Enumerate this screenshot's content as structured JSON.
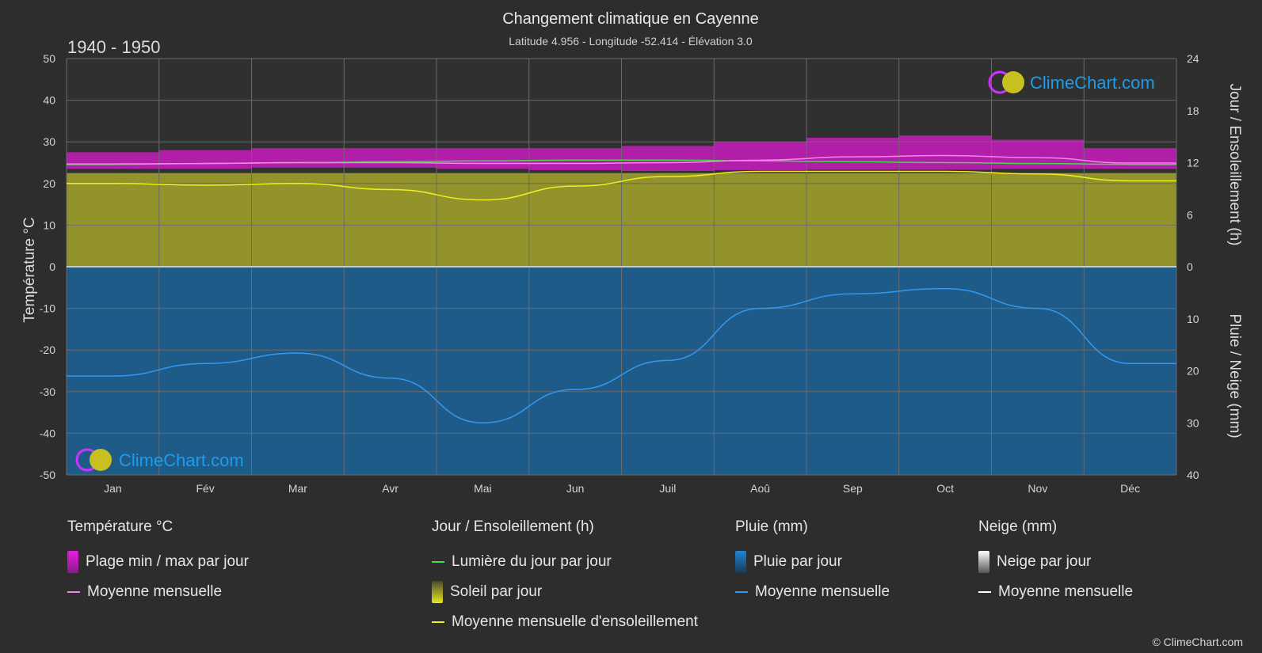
{
  "title": "Changement climatique en Cayenne",
  "subtitle": "Latitude 4.956 - Longitude -52.414 - Élévation 3.0",
  "period": "1940 - 1950",
  "brand": "ClimeChart.com",
  "copyright": "© ClimeChart.com",
  "colors": {
    "temp_band": "#d21bc8",
    "temp_line": "#ff7df2",
    "daylight_line": "#44dd44",
    "sun_fill": "#a5a52a",
    "sun_line": "#f0f020",
    "rain_fill": "#1a6aa5",
    "rain_line": "#3399ee",
    "snow_line": "#ffffff"
  },
  "chart_data": {
    "type": "area",
    "months": [
      "Jan",
      "Fév",
      "Mar",
      "Avr",
      "Mai",
      "Jun",
      "Juil",
      "Aoû",
      "Sep",
      "Oct",
      "Nov",
      "Déc"
    ],
    "left_axis": {
      "label": "Température °C",
      "ylim": [
        -50,
        50
      ],
      "ticks": [
        50,
        40,
        30,
        20,
        10,
        0,
        -10,
        -20,
        -30,
        -40,
        -50
      ]
    },
    "right_axis_top": {
      "label": "Jour / Ensoleillement (h)",
      "ylim": [
        0,
        24
      ],
      "ticks": [
        24,
        18,
        12,
        6,
        0
      ]
    },
    "right_axis_bottom": {
      "label": "Pluie / Neige (mm)",
      "ylim": [
        0,
        40
      ],
      "ticks": [
        0,
        10,
        20,
        30,
        40
      ]
    },
    "series": [
      {
        "name": "Plage min / max par jour",
        "unit": "°C",
        "min": [
          23.5,
          23.5,
          23.8,
          23.8,
          23.5,
          23.2,
          23.0,
          23.2,
          23.3,
          23.3,
          23.5,
          23.5
        ],
        "max": [
          27.5,
          28.0,
          28.5,
          28.5,
          28.5,
          28.5,
          29.0,
          30.0,
          31.0,
          31.5,
          30.5,
          28.5
        ]
      },
      {
        "name": "Moyenne mensuelle",
        "unit": "°C",
        "values": [
          24.7,
          24.8,
          25.0,
          25.0,
          24.8,
          24.8,
          25.0,
          25.6,
          26.4,
          26.7,
          26.2,
          24.9
        ]
      },
      {
        "name": "Lumière du jour par jour",
        "unit": "h",
        "values": [
          11.8,
          11.9,
          12.0,
          12.1,
          12.2,
          12.3,
          12.3,
          12.2,
          12.1,
          12.0,
          11.9,
          11.8
        ]
      },
      {
        "name": "Soleil par jour",
        "unit": "h",
        "values": [
          10.8,
          10.8,
          10.8,
          10.8,
          10.8,
          10.8,
          10.8,
          10.8,
          10.8,
          10.8,
          10.8,
          10.8
        ]
      },
      {
        "name": "Moyenne mensuelle d'ensoleillement",
        "unit": "h",
        "values": [
          9.6,
          9.4,
          9.6,
          8.9,
          7.7,
          9.3,
          10.4,
          11.0,
          11.0,
          11.0,
          10.7,
          9.9
        ]
      },
      {
        "name": "Pluie par jour",
        "unit": "mm",
        "values": [
          21.0,
          18.6,
          16.6,
          21.4,
          30.0,
          23.6,
          18.0,
          8.0,
          5.2,
          4.2,
          8.0,
          18.6
        ]
      },
      {
        "name": "Moyenne mensuelle",
        "unit": "mm",
        "values": [
          21.0,
          18.6,
          16.6,
          21.4,
          30.0,
          23.6,
          18.0,
          8.0,
          5.2,
          4.2,
          8.0,
          18.6
        ]
      },
      {
        "name": "Neige par jour",
        "unit": "mm",
        "values": [
          0,
          0,
          0,
          0,
          0,
          0,
          0,
          0,
          0,
          0,
          0,
          0
        ]
      }
    ]
  },
  "legend": {
    "temperature": {
      "title": "Température °C",
      "band": "Plage min / max par jour",
      "mean": "Moyenne mensuelle"
    },
    "sunshine": {
      "title": "Jour / Ensoleillement (h)",
      "daylight": "Lumière du jour par jour",
      "sun": "Soleil par jour",
      "sun_mean": "Moyenne mensuelle d'ensoleillement"
    },
    "rain": {
      "title": "Pluie (mm)",
      "daily": "Pluie par jour",
      "mean": "Moyenne mensuelle"
    },
    "snow": {
      "title": "Neige (mm)",
      "daily": "Neige par jour",
      "mean": "Moyenne mensuelle"
    }
  }
}
